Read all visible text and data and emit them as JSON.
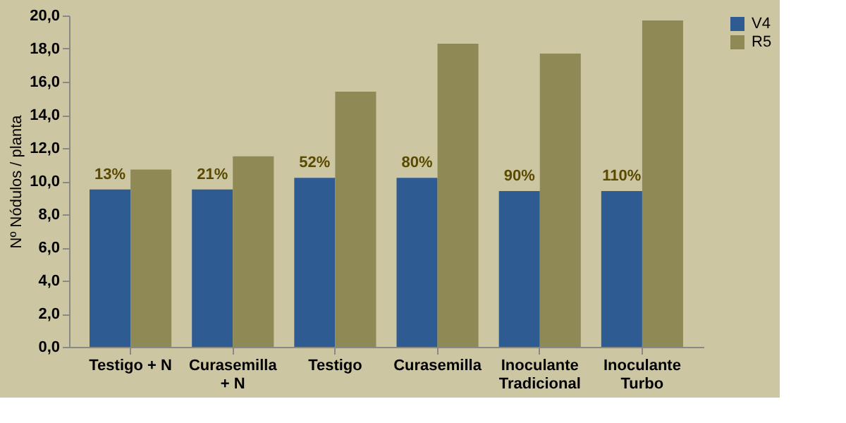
{
  "chart_data": {
    "type": "bar",
    "ylabel": "Nº Nódulos / planta",
    "categories": [
      "Testigo + N",
      "Curasemilla + N",
      "Testigo",
      "Curasemilla",
      "Inoculante Tradicional",
      "Inoculante Turbo"
    ],
    "series": [
      {
        "name": "V4",
        "color": "#2f5b93",
        "values": [
          9.5,
          9.5,
          10.2,
          10.2,
          9.4,
          9.4
        ]
      },
      {
        "name": "R5",
        "color": "#8f8a55",
        "values": [
          10.7,
          11.5,
          15.4,
          18.3,
          17.7,
          19.7
        ]
      }
    ],
    "ylim": [
      0,
      20
    ],
    "yticks": [
      {
        "value": 0,
        "label": "0,0"
      },
      {
        "value": 2,
        "label": "2,0"
      },
      {
        "value": 4,
        "label": "4,0"
      },
      {
        "value": 6,
        "label": "6,0"
      },
      {
        "value": 8,
        "label": "8,0"
      },
      {
        "value": 10,
        "label": "10,0"
      },
      {
        "value": 12,
        "label": "12,0"
      },
      {
        "value": 14,
        "label": "14,0"
      },
      {
        "value": 16,
        "label": "16,0"
      },
      {
        "value": 18,
        "label": "18,0"
      },
      {
        "value": 20,
        "label": "20,0"
      }
    ],
    "annotations": [
      "13%",
      "21%",
      "52%",
      "80%",
      "90%",
      "110%"
    ],
    "grid": false,
    "legend": "right"
  }
}
